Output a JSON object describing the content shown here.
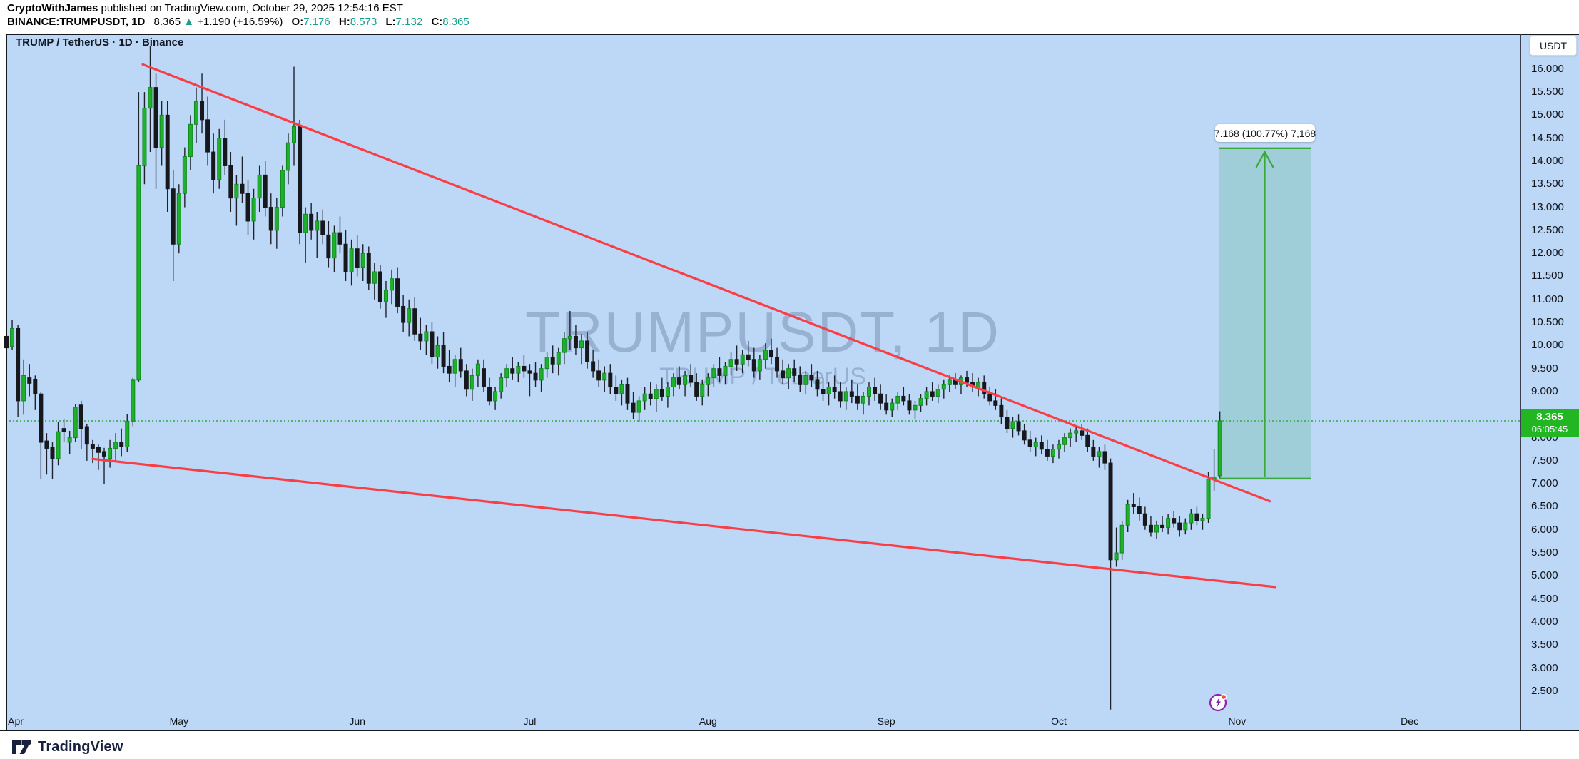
{
  "header": {
    "byline_user": "CryptoWithJames",
    "byline_rest": " published on TradingView.com, October 29, 2025 12:54:16 EST",
    "symbol_line": {
      "symbol": "BINANCE:TRUMPUSDT, 1D",
      "last_price": "8.365",
      "direction_arrow": "▲",
      "change": "+1.190 (+16.59%)",
      "o_label": "O:",
      "o": "7.176",
      "h_label": "H:",
      "h": "8.573",
      "l_label": "L:",
      "l": "7.132",
      "c_label": "C:",
      "c": "8.365"
    }
  },
  "chart": {
    "title": "TRUMP / TetherUS · 1D · Binance",
    "watermark_title": "TRUMPUSDT, 1D",
    "watermark_subtitle": "TRUMP / TetherUS",
    "currency_button": "USDT",
    "price_badge": {
      "price": "8.365",
      "countdown": "06:05:45"
    },
    "measure_label": "7.168 (100.77%) 7,168"
  },
  "footer": {
    "logo_text": "TradingView"
  },
  "chart_data": {
    "type": "candlestick",
    "symbol": "TRUMPUSDT",
    "interval": "1D",
    "exchange": "Binance",
    "current_ohlc": {
      "open": 7.176,
      "high": 8.573,
      "low": 7.132,
      "close": 8.365,
      "change": "+1.190",
      "change_pct": "+16.59%"
    },
    "price_line": 8.365,
    "ylim": [
      2.0,
      16.8
    ],
    "price_axis_ticks": [
      "16.000",
      "15.500",
      "15.000",
      "14.500",
      "14.000",
      "13.500",
      "13.000",
      "12.500",
      "12.000",
      "11.500",
      "11.000",
      "10.500",
      "10.000",
      "9.500",
      "9.000",
      "8.500",
      "8.000",
      "7.500",
      "7.000",
      "6.500",
      "6.000",
      "5.500",
      "5.000",
      "4.500",
      "4.000",
      "3.500",
      "3.000",
      "2.500"
    ],
    "months": [
      {
        "label": "Apr",
        "day": 0
      },
      {
        "label": "May",
        "day": 30
      },
      {
        "label": "Jun",
        "day": 61
      },
      {
        "label": "Jul",
        "day": 91
      },
      {
        "label": "Aug",
        "day": 122
      },
      {
        "label": "Sep",
        "day": 153
      },
      {
        "label": "Oct",
        "day": 183
      },
      {
        "label": "Nov",
        "day": 214
      },
      {
        "label": "Dec",
        "day": 244
      }
    ],
    "trendlines": [
      {
        "name": "upper-descending-trendline",
        "d1": 23.7,
        "p1": 16.1,
        "d2": 219.7,
        "p2": 6.62
      },
      {
        "name": "lower-descending-trendline",
        "d1": 15.0,
        "p1": 7.54,
        "d2": 220.6,
        "p2": 4.76
      }
    ],
    "projection_box": {
      "d1": 210.8,
      "d2": 226.8,
      "price_bottom": 7.113,
      "price_top": 14.281,
      "range": "7.168",
      "range_pct": "100.77%",
      "bars_label": "7,168"
    },
    "event_marker_day": 210.7,
    "candles": [
      [
        10.2,
        10.35,
        9.8,
        9.95
      ],
      [
        9.98,
        10.55,
        9.9,
        10.37
      ],
      [
        10.37,
        10.45,
        8.45,
        8.8
      ],
      [
        8.8,
        9.7,
        8.5,
        9.35
      ],
      [
        9.3,
        9.6,
        8.9,
        9.18
      ],
      [
        9.26,
        9.35,
        8.6,
        8.95
      ],
      [
        8.95,
        9.0,
        7.1,
        7.9
      ],
      [
        7.93,
        8.1,
        7.2,
        7.77
      ],
      [
        7.79,
        7.9,
        7.1,
        7.55
      ],
      [
        7.55,
        8.35,
        7.4,
        8.13
      ],
      [
        8.2,
        8.4,
        7.9,
        8.14
      ],
      [
        7.9,
        8.15,
        7.65,
        8.0
      ],
      [
        8.0,
        8.72,
        7.9,
        8.66
      ],
      [
        8.71,
        8.8,
        7.75,
        8.2
      ],
      [
        8.24,
        8.3,
        7.5,
        7.86
      ],
      [
        7.86,
        7.95,
        7.45,
        7.77
      ],
      [
        7.8,
        7.85,
        7.3,
        7.68
      ],
      [
        7.7,
        7.78,
        7.0,
        7.6
      ],
      [
        7.55,
        7.95,
        7.35,
        7.77
      ],
      [
        7.77,
        8.1,
        7.5,
        7.9
      ],
      [
        7.9,
        8.2,
        7.6,
        7.8
      ],
      [
        7.8,
        8.52,
        7.7,
        8.36
      ],
      [
        8.36,
        9.3,
        8.25,
        9.25
      ],
      [
        9.25,
        15.5,
        9.2,
        13.9
      ],
      [
        13.9,
        15.5,
        13.5,
        15.15
      ],
      [
        15.15,
        16.5,
        14.2,
        15.6
      ],
      [
        15.6,
        15.9,
        13.4,
        14.3
      ],
      [
        14.3,
        15.3,
        13.9,
        15.0
      ],
      [
        15.0,
        15.3,
        12.9,
        13.4
      ],
      [
        13.4,
        13.8,
        11.4,
        12.2
      ],
      [
        12.2,
        13.5,
        12.0,
        13.3
      ],
      [
        13.3,
        14.3,
        13.0,
        14.1
      ],
      [
        14.1,
        15.0,
        13.8,
        14.8
      ],
      [
        14.8,
        15.6,
        14.4,
        15.3
      ],
      [
        15.3,
        15.9,
        14.6,
        14.9
      ],
      [
        14.9,
        15.4,
        13.9,
        14.2
      ],
      [
        14.2,
        14.6,
        13.3,
        13.6
      ],
      [
        13.6,
        14.7,
        13.4,
        14.5
      ],
      [
        14.5,
        14.9,
        13.7,
        13.9
      ],
      [
        13.9,
        14.2,
        12.9,
        13.2
      ],
      [
        13.2,
        13.7,
        12.6,
        13.5
      ],
      [
        13.5,
        14.1,
        13.1,
        13.3
      ],
      [
        13.3,
        13.6,
        12.4,
        12.7
      ],
      [
        12.7,
        13.4,
        12.3,
        13.2
      ],
      [
        13.2,
        13.9,
        12.9,
        13.7
      ],
      [
        13.7,
        14.0,
        12.8,
        13.0
      ],
      [
        13.0,
        13.3,
        12.2,
        12.5
      ],
      [
        12.5,
        13.2,
        12.1,
        13.0
      ],
      [
        13.0,
        13.9,
        12.8,
        13.8
      ],
      [
        13.8,
        14.6,
        13.5,
        14.4
      ],
      [
        14.4,
        16.05,
        13.9,
        14.75
      ],
      [
        14.75,
        14.9,
        12.2,
        12.45
      ],
      [
        12.45,
        13.0,
        11.8,
        12.85
      ],
      [
        12.85,
        13.1,
        12.3,
        12.5
      ],
      [
        12.5,
        12.9,
        11.9,
        12.7
      ],
      [
        12.7,
        12.95,
        12.2,
        12.4
      ],
      [
        12.4,
        12.7,
        11.7,
        11.9
      ],
      [
        11.9,
        12.6,
        11.6,
        12.45
      ],
      [
        12.45,
        12.8,
        12.0,
        12.2
      ],
      [
        12.2,
        12.5,
        11.4,
        11.6
      ],
      [
        11.6,
        12.3,
        11.3,
        12.1
      ],
      [
        12.1,
        12.4,
        11.5,
        11.7
      ],
      [
        11.7,
        12.2,
        11.4,
        12.0
      ],
      [
        12.0,
        12.15,
        11.2,
        11.35
      ],
      [
        11.35,
        11.8,
        11.0,
        11.6
      ],
      [
        11.6,
        11.75,
        10.8,
        10.95
      ],
      [
        10.95,
        11.4,
        10.6,
        11.2
      ],
      [
        11.2,
        11.65,
        10.9,
        11.45
      ],
      [
        11.45,
        11.7,
        10.7,
        10.85
      ],
      [
        10.85,
        11.1,
        10.3,
        10.5
      ],
      [
        10.5,
        11.0,
        10.2,
        10.8
      ],
      [
        10.8,
        11.05,
        10.1,
        10.25
      ],
      [
        10.25,
        10.6,
        9.9,
        10.1
      ],
      [
        10.1,
        10.45,
        9.8,
        10.3
      ],
      [
        10.3,
        10.5,
        9.6,
        9.75
      ],
      [
        9.75,
        10.2,
        9.5,
        10.0
      ],
      [
        10.0,
        10.3,
        9.4,
        9.55
      ],
      [
        9.55,
        9.9,
        9.2,
        9.4
      ],
      [
        9.4,
        9.8,
        9.1,
        9.7
      ],
      [
        9.7,
        9.95,
        9.3,
        9.45
      ],
      [
        9.45,
        9.6,
        8.9,
        9.05
      ],
      [
        9.05,
        9.5,
        8.8,
        9.35
      ],
      [
        9.35,
        9.7,
        9.1,
        9.6
      ],
      [
        9.5,
        9.7,
        9.0,
        9.1
      ],
      [
        9.1,
        9.3,
        8.7,
        8.8
      ],
      [
        8.8,
        9.1,
        8.6,
        9.0
      ],
      [
        9.0,
        9.4,
        8.85,
        9.3
      ],
      [
        9.3,
        9.6,
        9.1,
        9.5
      ],
      [
        9.5,
        9.75,
        9.25,
        9.4
      ],
      [
        9.4,
        9.65,
        9.2,
        9.55
      ],
      [
        9.55,
        9.8,
        9.3,
        9.45
      ],
      [
        9.45,
        9.6,
        8.9,
        9.4
      ],
      [
        9.4,
        9.65,
        9.1,
        9.25
      ],
      [
        9.25,
        9.6,
        9.0,
        9.5
      ],
      [
        9.5,
        9.85,
        9.3,
        9.75
      ],
      [
        9.75,
        10.0,
        9.4,
        9.6
      ],
      [
        9.6,
        9.95,
        9.35,
        9.85
      ],
      [
        9.85,
        10.3,
        9.6,
        10.15
      ],
      [
        10.15,
        10.75,
        9.9,
        10.2
      ],
      [
        10.2,
        10.45,
        9.8,
        9.95
      ],
      [
        9.95,
        10.25,
        9.6,
        10.1
      ],
      [
        10.1,
        10.3,
        9.5,
        9.65
      ],
      [
        9.65,
        9.9,
        9.3,
        9.45
      ],
      [
        9.45,
        9.7,
        9.1,
        9.25
      ],
      [
        9.25,
        9.55,
        9.0,
        9.4
      ],
      [
        9.4,
        9.6,
        8.95,
        9.1
      ],
      [
        9.1,
        9.35,
        8.8,
        8.95
      ],
      [
        8.95,
        9.25,
        8.7,
        9.15
      ],
      [
        9.15,
        9.3,
        8.6,
        8.75
      ],
      [
        8.75,
        9.0,
        8.4,
        8.55
      ],
      [
        8.55,
        8.9,
        8.35,
        8.8
      ],
      [
        8.8,
        9.1,
        8.6,
        8.95
      ],
      [
        8.95,
        9.2,
        8.7,
        8.85
      ],
      [
        8.85,
        9.15,
        8.55,
        9.05
      ],
      [
        9.05,
        9.3,
        8.8,
        8.9
      ],
      [
        8.9,
        9.2,
        8.65,
        9.1
      ],
      [
        9.1,
        9.4,
        8.9,
        9.3
      ],
      [
        9.3,
        9.55,
        9.05,
        9.15
      ],
      [
        9.15,
        9.45,
        8.9,
        9.35
      ],
      [
        9.35,
        9.6,
        9.1,
        9.2
      ],
      [
        9.2,
        9.4,
        8.8,
        8.9
      ],
      [
        8.9,
        9.25,
        8.7,
        9.15
      ],
      [
        9.15,
        9.4,
        8.9,
        9.3
      ],
      [
        9.3,
        9.6,
        9.1,
        9.5
      ],
      [
        9.5,
        9.75,
        9.2,
        9.35
      ],
      [
        9.35,
        9.65,
        9.15,
        9.55
      ],
      [
        9.55,
        9.85,
        9.35,
        9.7
      ],
      [
        9.7,
        10.0,
        9.45,
        9.6
      ],
      [
        9.6,
        9.9,
        9.4,
        9.8
      ],
      [
        9.8,
        10.1,
        9.55,
        9.7
      ],
      [
        9.7,
        9.95,
        9.3,
        9.45
      ],
      [
        9.45,
        9.8,
        9.25,
        9.7
      ],
      [
        9.7,
        10.05,
        9.5,
        9.9
      ],
      [
        9.9,
        10.15,
        9.6,
        9.75
      ],
      [
        9.75,
        9.95,
        9.3,
        9.45
      ],
      [
        9.45,
        9.7,
        9.15,
        9.3
      ],
      [
        9.3,
        9.6,
        9.05,
        9.5
      ],
      [
        9.5,
        9.7,
        9.2,
        9.35
      ],
      [
        9.35,
        9.55,
        9.0,
        9.15
      ],
      [
        9.15,
        9.45,
        8.95,
        9.35
      ],
      [
        9.35,
        9.6,
        9.1,
        9.25
      ],
      [
        9.25,
        9.45,
        8.9,
        9.05
      ],
      [
        9.05,
        9.3,
        8.8,
        8.95
      ],
      [
        8.95,
        9.2,
        8.7,
        9.1
      ],
      [
        9.1,
        9.35,
        8.85,
        9.0
      ],
      [
        9.0,
        9.2,
        8.65,
        8.8
      ],
      [
        8.8,
        9.1,
        8.6,
        9.0
      ],
      [
        9.0,
        9.25,
        8.75,
        8.9
      ],
      [
        8.9,
        9.15,
        8.6,
        8.75
      ],
      [
        8.75,
        9.0,
        8.5,
        8.9
      ],
      [
        8.9,
        9.2,
        8.7,
        9.1
      ],
      [
        9.1,
        9.3,
        8.8,
        8.95
      ],
      [
        8.95,
        9.15,
        8.6,
        8.75
      ],
      [
        8.75,
        8.95,
        8.5,
        8.6
      ],
      [
        8.6,
        8.85,
        8.45,
        8.75
      ],
      [
        8.75,
        9.0,
        8.6,
        8.9
      ],
      [
        8.9,
        9.1,
        8.7,
        8.8
      ],
      [
        8.8,
        8.95,
        8.5,
        8.6
      ],
      [
        8.6,
        8.8,
        8.4,
        8.7
      ],
      [
        8.7,
        8.95,
        8.55,
        8.85
      ],
      [
        8.85,
        9.1,
        8.7,
        9.0
      ],
      [
        9.0,
        9.2,
        8.8,
        8.9
      ],
      [
        8.9,
        9.15,
        8.75,
        9.05
      ],
      [
        9.05,
        9.25,
        8.85,
        9.15
      ],
      [
        9.15,
        9.35,
        9.0,
        9.25
      ],
      [
        9.25,
        9.4,
        9.05,
        9.15
      ],
      [
        9.15,
        9.35,
        8.95,
        9.3
      ],
      [
        9.3,
        9.45,
        9.1,
        9.2
      ],
      [
        9.2,
        9.4,
        9.0,
        9.1
      ],
      [
        9.1,
        9.3,
        8.9,
        9.2
      ],
      [
        9.2,
        9.35,
        8.85,
        8.95
      ],
      [
        8.95,
        9.1,
        8.7,
        8.8
      ],
      [
        8.8,
        9.05,
        8.6,
        8.7
      ],
      [
        8.7,
        8.85,
        8.3,
        8.45
      ],
      [
        8.45,
        8.6,
        8.1,
        8.2
      ],
      [
        8.2,
        8.45,
        8.0,
        8.35
      ],
      [
        8.35,
        8.5,
        8.05,
        8.15
      ],
      [
        8.15,
        8.3,
        7.85,
        7.95
      ],
      [
        7.95,
        8.15,
        7.7,
        7.8
      ],
      [
        7.8,
        8.0,
        7.6,
        7.9
      ],
      [
        7.9,
        8.05,
        7.65,
        7.75
      ],
      [
        7.75,
        7.95,
        7.5,
        7.6
      ],
      [
        7.6,
        7.85,
        7.45,
        7.75
      ],
      [
        7.75,
        7.95,
        7.55,
        7.85
      ],
      [
        7.85,
        8.1,
        7.7,
        8.0
      ],
      [
        8.0,
        8.2,
        7.8,
        8.1
      ],
      [
        8.1,
        8.25,
        7.9,
        8.15
      ],
      [
        8.15,
        8.3,
        7.95,
        8.05
      ],
      [
        8.05,
        8.2,
        7.7,
        7.8
      ],
      [
        7.8,
        7.95,
        7.5,
        7.6
      ],
      [
        7.6,
        7.8,
        7.35,
        7.7
      ],
      [
        7.7,
        7.85,
        7.3,
        7.45
      ],
      [
        7.45,
        7.55,
        2.1,
        5.35
      ],
      [
        5.35,
        6.05,
        5.2,
        5.5
      ],
      [
        5.5,
        6.2,
        5.35,
        6.1
      ],
      [
        6.1,
        6.65,
        5.95,
        6.55
      ],
      [
        6.55,
        6.8,
        6.35,
        6.5
      ],
      [
        6.5,
        6.7,
        6.2,
        6.35
      ],
      [
        6.35,
        6.5,
        6.0,
        6.1
      ],
      [
        6.1,
        6.3,
        5.85,
        5.95
      ],
      [
        5.95,
        6.2,
        5.8,
        6.1
      ],
      [
        6.1,
        6.3,
        5.95,
        6.05
      ],
      [
        6.05,
        6.35,
        5.9,
        6.25
      ],
      [
        6.25,
        6.4,
        6.05,
        6.15
      ],
      [
        6.15,
        6.3,
        5.85,
        6.0
      ],
      [
        6.0,
        6.25,
        5.9,
        6.15
      ],
      [
        6.15,
        6.45,
        6.0,
        6.35
      ],
      [
        6.35,
        6.5,
        6.1,
        6.2
      ],
      [
        6.2,
        6.35,
        6.0,
        6.25
      ],
      [
        6.25,
        7.25,
        6.15,
        7.1
      ],
      [
        7.1,
        7.75,
        6.85,
        7.15
      ],
      [
        7.176,
        8.573,
        7.132,
        8.365
      ]
    ],
    "colors": {
      "background": "#bdd8f7",
      "candle_up": "#1fb02c",
      "candle_down": "#16181d",
      "trendline_red": "#fa3e46",
      "projection_green": "#3aa83a",
      "price_line_green": "#2aab3c",
      "badge_green": "#22b622",
      "teal_values": "#1b9e90"
    }
  }
}
